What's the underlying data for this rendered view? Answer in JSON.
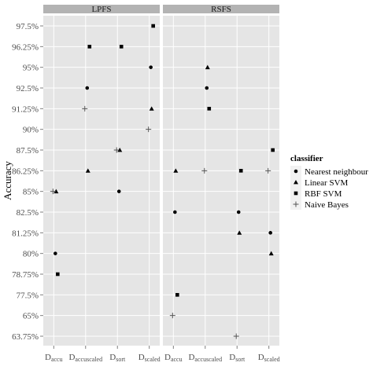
{
  "chart_data": {
    "type": "scatter",
    "title": "",
    "ylabel": "Accuracy",
    "xlabel": "",
    "y_ticks": [
      "63.75%",
      "65%",
      "77.5%",
      "78.75%",
      "80%",
      "81.25%",
      "82.5%",
      "85%",
      "86.25%",
      "87.5%",
      "90%",
      "91.25%",
      "92.5%",
      "95%",
      "96.25%",
      "97.5%"
    ],
    "categories": [
      "D_accu",
      "D_accuscaled",
      "D_sort",
      "D_scaled"
    ],
    "x_tick_labels": [
      {
        "base": "D",
        "sub": "accu"
      },
      {
        "base": "D",
        "sub": "accuscaled"
      },
      {
        "base": "D",
        "sub": "sort"
      },
      {
        "base": "D",
        "sub": "scaled"
      }
    ],
    "grid": true,
    "legend": {
      "title": "classifier",
      "placement": "right",
      "entries": [
        {
          "label": "Nearest neighbour",
          "shape": "circle"
        },
        {
          "label": "Linear SVM",
          "shape": "triangle"
        },
        {
          "label": "RBF SVM",
          "shape": "square"
        },
        {
          "label": "Naive Bayes",
          "shape": "plus"
        }
      ]
    },
    "panels": [
      {
        "strip": "LPFS",
        "series": [
          {
            "name": "Nearest neighbour",
            "values": [
              "80%",
              "92.5%",
              "85%",
              "95%"
            ]
          },
          {
            "name": "Linear SVM",
            "values": [
              "85%",
              "86.25%",
              "87.5%",
              "91.25%"
            ]
          },
          {
            "name": "RBF SVM",
            "values": [
              "78.75%",
              "96.25%",
              "96.25%",
              "97.5%"
            ]
          },
          {
            "name": "Naive Bayes",
            "values": [
              "85%",
              "91.25%",
              "87.5%",
              "90%"
            ]
          }
        ]
      },
      {
        "strip": "RSFS",
        "series": [
          {
            "name": "Nearest neighbour",
            "values": [
              "82.5%",
              "92.5%",
              "82.5%",
              "81.25%"
            ]
          },
          {
            "name": "Linear SVM",
            "values": [
              "86.25%",
              "95%",
              "81.25%",
              "80%"
            ]
          },
          {
            "name": "RBF SVM",
            "values": [
              "77.5%",
              "91.25%",
              "86.25%",
              "87.5%"
            ]
          },
          {
            "name": "Naive Bayes",
            "values": [
              "65%",
              "86.25%",
              "63.75%",
              "86.25%"
            ]
          }
        ]
      }
    ]
  }
}
